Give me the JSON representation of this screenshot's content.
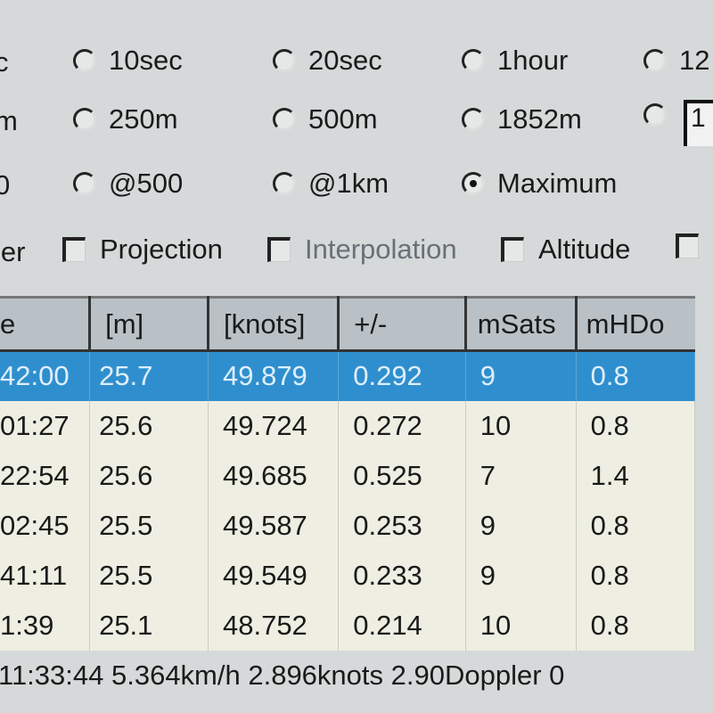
{
  "options": {
    "row1_partial": "c",
    "row1": [
      {
        "label": "10sec",
        "selected": false
      },
      {
        "label": "20sec",
        "selected": false
      },
      {
        "label": "1hour",
        "selected": false
      },
      {
        "label": "12",
        "selected": false
      }
    ],
    "row2_partial": "m",
    "row2": [
      {
        "label": "250m",
        "selected": false
      },
      {
        "label": "500m",
        "selected": false
      },
      {
        "label": "1852m",
        "selected": false
      },
      {
        "label": "",
        "selected": false
      }
    ],
    "row2_edit_value": "1",
    "row3_partial": "0",
    "row3": [
      {
        "label": "@500",
        "selected": false
      },
      {
        "label": "@1km",
        "selected": false
      },
      {
        "label": "Maximum",
        "selected": true
      }
    ],
    "checks_partial": "ler",
    "checks": [
      {
        "label": "Projection",
        "checked": false,
        "enabled": true
      },
      {
        "label": "Interpolation",
        "checked": false,
        "enabled": false
      },
      {
        "label": "Altitude",
        "checked": false,
        "enabled": true
      },
      {
        "label": "",
        "checked": false,
        "enabled": true
      }
    ]
  },
  "table": {
    "headers": [
      "e",
      "[m]",
      "[knots]",
      "+/-",
      "mSats",
      "mHDo"
    ],
    "rows": [
      [
        "42:00",
        "25.7",
        "49.879",
        "0.292",
        "9",
        "0.8"
      ],
      [
        "01:27",
        "25.6",
        "49.724",
        "0.272",
        "10",
        "0.8"
      ],
      [
        "22:54",
        "25.6",
        "49.685",
        "0.525",
        "7",
        "1.4"
      ],
      [
        "02:45",
        "25.5",
        "49.587",
        "0.253",
        "9",
        "0.8"
      ],
      [
        "41:11",
        "25.5",
        "49.549",
        "0.233",
        "9",
        "0.8"
      ],
      [
        "1:39",
        "25.1",
        "48.752",
        "0.214",
        "10",
        "0.8"
      ]
    ],
    "selected_row": 0
  },
  "status": "11:33:44  5.364km/h  2.896knots  2.90Doppler  0",
  "colors": {
    "selection": "#2f8fce",
    "header": "#b9c1c7",
    "background": "#d5d9d9"
  }
}
